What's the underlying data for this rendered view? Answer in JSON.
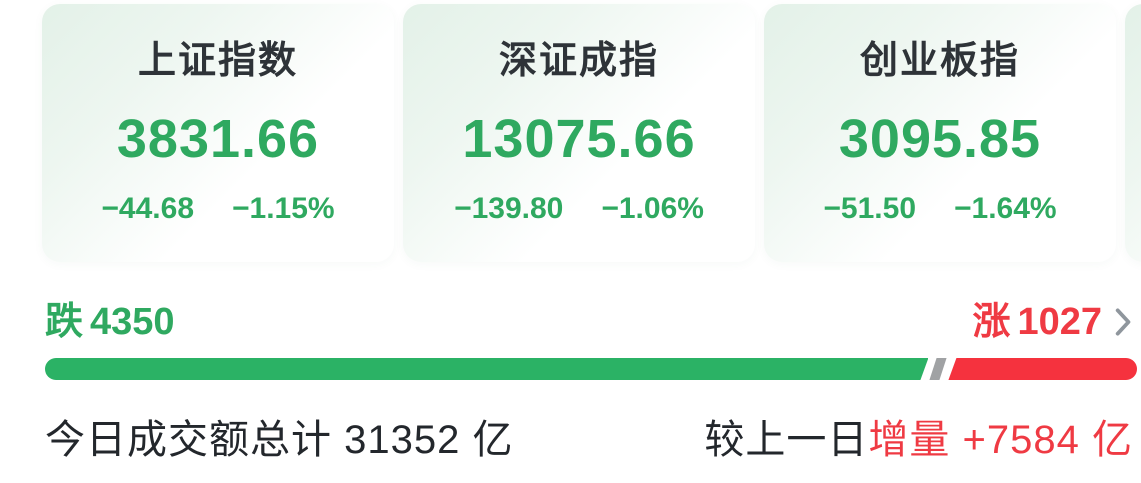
{
  "indices": [
    {
      "name": "上证指数",
      "value": "3831.66",
      "change": "−44.68",
      "change_pct": "−1.15%"
    },
    {
      "name": "深证成指",
      "value": "13075.66",
      "change": "−139.80",
      "change_pct": "−1.06%"
    },
    {
      "name": "创业板指",
      "value": "3095.85",
      "change": "−51.50",
      "change_pct": "−1.64%"
    }
  ],
  "breadth": {
    "down_label": "跌",
    "down_count": "4350",
    "up_label": "涨",
    "up_count": "1027"
  },
  "turnover": {
    "total_text": "今日成交额总计 31352 亿",
    "compare_prefix": "较上一日",
    "delta_text": "增量 +7584 亿"
  },
  "colors": {
    "green_text": "#2fa960",
    "green_bar": "#2bb265",
    "red_text": "#ef3a43",
    "red_bar": "#f5323e",
    "title_text": "#2e3338",
    "dark_text": "#23272c",
    "gray_chevron": "#8f969d",
    "gray_stripe": "#a0a2a4",
    "card_tint": "#e3f1e8"
  }
}
